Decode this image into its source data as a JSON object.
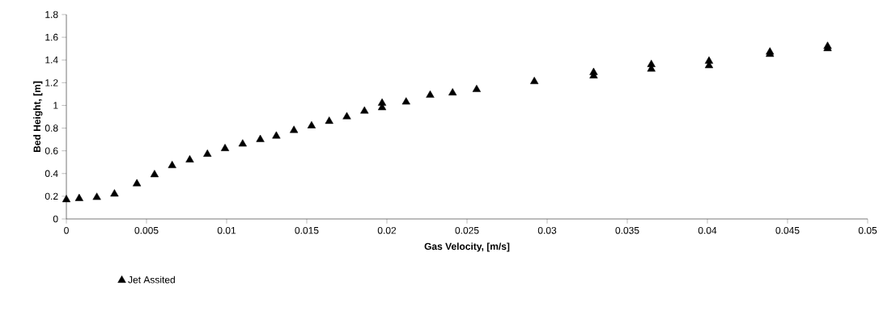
{
  "chart_data": {
    "type": "scatter",
    "xlabel": "Gas Velocity, [m/s]",
    "ylabel": "Bed Height, [m]",
    "xlim": [
      0,
      0.05
    ],
    "ylim": [
      0,
      1.8
    ],
    "xticks": [
      0,
      0.005,
      0.01,
      0.015,
      0.02,
      0.025,
      0.03,
      0.035,
      0.04,
      0.045,
      0.05
    ],
    "yticks": [
      0,
      0.2,
      0.4,
      0.6,
      0.8,
      1,
      1.2,
      1.4,
      1.6,
      1.8
    ],
    "marker": "triangle",
    "legend": "bottom",
    "grid": false,
    "series": [
      {
        "name": "Jet Assited",
        "color": "#000000",
        "x": [
          0,
          0.0008,
          0.0019,
          0.003,
          0.0044,
          0.0055,
          0.0066,
          0.0077,
          0.0088,
          0.0099,
          0.011,
          0.0121,
          0.0131,
          0.0142,
          0.0153,
          0.0164,
          0.0175,
          0.0186,
          0.0197,
          0.0197,
          0.0212,
          0.0227,
          0.0241,
          0.0256,
          0.0292,
          0.0329,
          0.0329,
          0.0365,
          0.0365,
          0.0401,
          0.0401,
          0.0439,
          0.0439,
          0.0475,
          0.0475
        ],
        "values": [
          0.17,
          0.18,
          0.19,
          0.22,
          0.31,
          0.39,
          0.47,
          0.52,
          0.57,
          0.62,
          0.66,
          0.7,
          0.73,
          0.78,
          0.82,
          0.86,
          0.9,
          0.95,
          0.98,
          1.02,
          1.03,
          1.09,
          1.11,
          1.14,
          1.21,
          1.26,
          1.29,
          1.32,
          1.36,
          1.35,
          1.39,
          1.45,
          1.47,
          1.5,
          1.52
        ]
      }
    ]
  }
}
